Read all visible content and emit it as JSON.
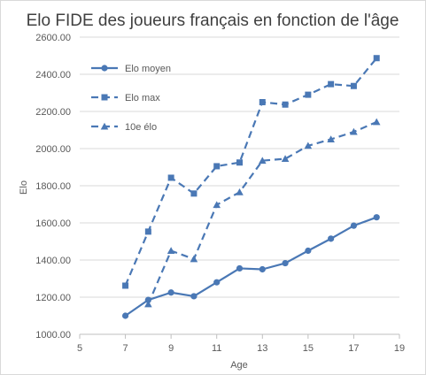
{
  "chart_data": {
    "type": "line",
    "title": "Elo FIDE des joueurs français en fonction de l'âge",
    "xlabel": "Age",
    "ylabel": "Elo",
    "xlim": [
      5,
      19
    ],
    "ylim": [
      1000,
      2600
    ],
    "x_ticks": [
      5,
      7,
      9,
      11,
      13,
      15,
      17,
      19
    ],
    "y_ticks": [
      1000,
      1200,
      1400,
      1600,
      1800,
      2000,
      2200,
      2400,
      2600
    ],
    "y_tick_labels": [
      "1000.00",
      "1200.00",
      "1400.00",
      "1600.00",
      "1800.00",
      "2000.00",
      "2200.00",
      "2400.00",
      "2600.00"
    ],
    "grid": "horizontal",
    "legend_position": "top-left",
    "series": [
      {
        "name": "Elo moyen",
        "marker": "circle",
        "dash": "solid",
        "color": "#4a78b5",
        "x": [
          7,
          8,
          9,
          10,
          11,
          12,
          13,
          14,
          15,
          16,
          17,
          18
        ],
        "y": [
          1100,
          1185,
          1225,
          1205,
          1280,
          1355,
          1350,
          1383,
          1450,
          1515,
          1585,
          1630
        ]
      },
      {
        "name": "Elo max",
        "marker": "square",
        "dash": "dashed",
        "color": "#4a78b5",
        "x": [
          7,
          8,
          9,
          10,
          11,
          12,
          13,
          14,
          15,
          16,
          17,
          18
        ],
        "y": [
          1262,
          1553,
          1843,
          1758,
          1905,
          1925,
          2250,
          2237,
          2290,
          2347,
          2337,
          2487
        ]
      },
      {
        "name": "10e élo",
        "marker": "triangle",
        "dash": "dashed",
        "color": "#4a78b5",
        "x": [
          8,
          9,
          10,
          11,
          12,
          13,
          14,
          15,
          16,
          17,
          18
        ],
        "y": [
          1162,
          1450,
          1405,
          1697,
          1765,
          1935,
          1945,
          2015,
          2050,
          2090,
          2143
        ]
      }
    ]
  }
}
